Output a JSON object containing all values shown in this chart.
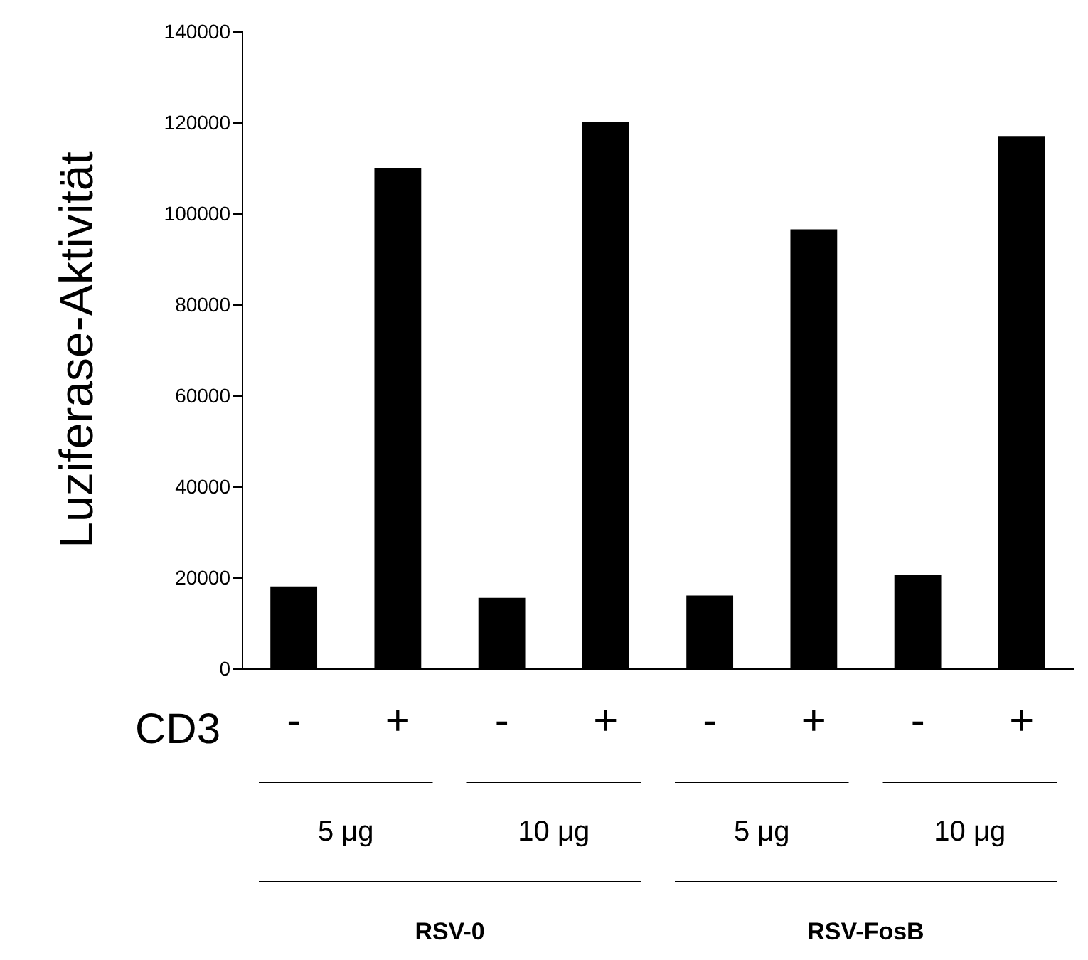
{
  "chart_data": {
    "type": "bar",
    "ylabel": "Luziferase-Aktivität",
    "categories": [
      "-",
      "+",
      "-",
      "+",
      "-",
      "+",
      "-",
      "+"
    ],
    "values": [
      18000,
      110000,
      15500,
      120000,
      16000,
      96500,
      20500,
      117000
    ],
    "color": "#000000",
    "ylim": [
      0,
      140000
    ],
    "yticks": [
      0,
      20000,
      40000,
      60000,
      80000,
      100000,
      120000,
      140000
    ],
    "grid": false,
    "annotations": [
      "CD3",
      "5 μg",
      "10 μg",
      "5 μg",
      "10 μg",
      "RSV-0",
      "RSV-FosB"
    ]
  }
}
